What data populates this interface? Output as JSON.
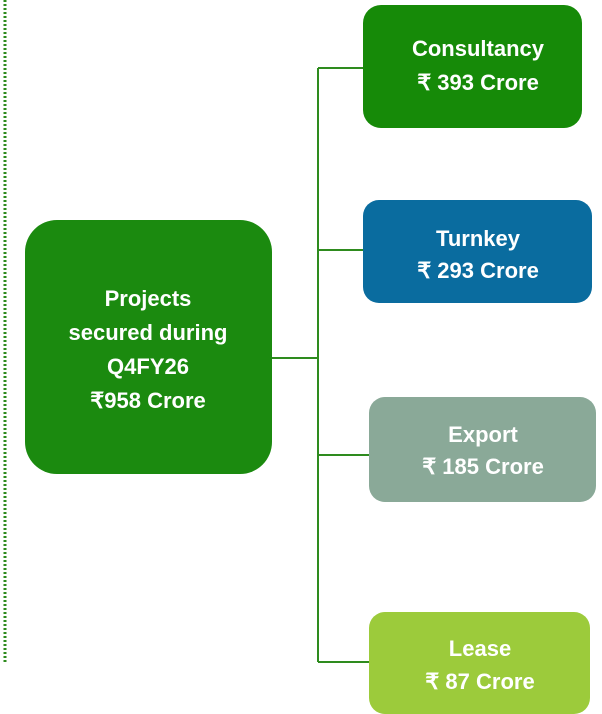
{
  "root": {
    "lines": [
      "Projects",
      "secured during",
      "Q4FY26",
      "₹958 Crore"
    ]
  },
  "children": [
    {
      "label": "Consultancy",
      "value": "₹  393 Crore"
    },
    {
      "label": "Turnkey",
      "value": "₹  293 Crore"
    },
    {
      "label": "Export",
      "value": "₹  185 Crore"
    },
    {
      "label": "Lease",
      "value": "₹  87 Crore"
    }
  ]
}
